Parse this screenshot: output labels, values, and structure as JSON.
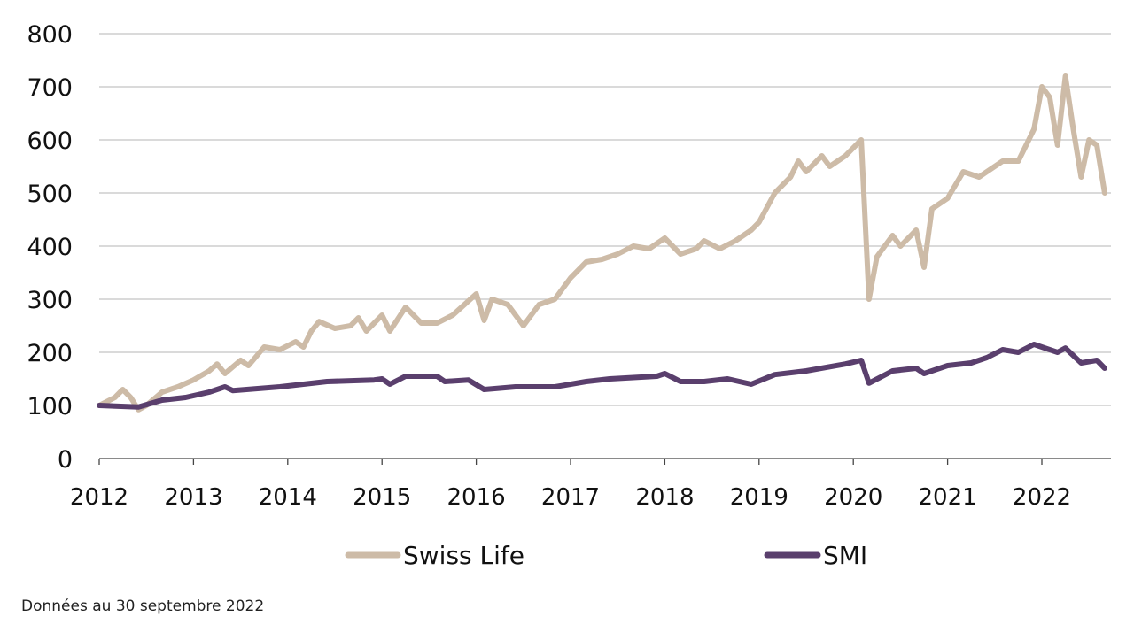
{
  "chart_data": {
    "type": "line",
    "title": "",
    "xlabel": "",
    "ylabel": "",
    "ylim": [
      0,
      800
    ],
    "yticks": [
      "0",
      "100",
      "200",
      "300",
      "400",
      "500",
      "600",
      "700",
      "800"
    ],
    "xticks": [
      "2012",
      "2013",
      "2014",
      "2015",
      "2016",
      "2017",
      "2018",
      "2019",
      "2020",
      "2021",
      "2022"
    ],
    "grid": true,
    "legend": "bottom",
    "series": [
      {
        "name": "Swiss Life",
        "color": "#cdbba7",
        "points": [
          [
            "2012-01",
            100
          ],
          [
            "2012-03",
            115
          ],
          [
            "2012-04",
            130
          ],
          [
            "2012-05",
            115
          ],
          [
            "2012-06",
            92
          ],
          [
            "2012-07",
            100
          ],
          [
            "2012-09",
            125
          ],
          [
            "2012-11",
            135
          ],
          [
            "2013-01",
            148
          ],
          [
            "2013-03",
            165
          ],
          [
            "2013-04",
            178
          ],
          [
            "2013-05",
            160
          ],
          [
            "2013-07",
            185
          ],
          [
            "2013-08",
            175
          ],
          [
            "2013-10",
            210
          ],
          [
            "2013-12",
            205
          ],
          [
            "2014-02",
            220
          ],
          [
            "2014-03",
            210
          ],
          [
            "2014-04",
            240
          ],
          [
            "2014-05",
            258
          ],
          [
            "2014-07",
            245
          ],
          [
            "2014-09",
            250
          ],
          [
            "2014-10",
            265
          ],
          [
            "2014-11",
            240
          ],
          [
            "2015-01",
            270
          ],
          [
            "2015-02",
            240
          ],
          [
            "2015-04",
            285
          ],
          [
            "2015-06",
            255
          ],
          [
            "2015-08",
            255
          ],
          [
            "2015-10",
            270
          ],
          [
            "2016-01",
            310
          ],
          [
            "2016-02",
            260
          ],
          [
            "2016-03",
            300
          ],
          [
            "2016-05",
            290
          ],
          [
            "2016-07",
            250
          ],
          [
            "2016-09",
            290
          ],
          [
            "2016-11",
            300
          ],
          [
            "2017-01",
            340
          ],
          [
            "2017-03",
            370
          ],
          [
            "2017-05",
            375
          ],
          [
            "2017-07",
            385
          ],
          [
            "2017-09",
            400
          ],
          [
            "2017-11",
            395
          ],
          [
            "2018-01",
            415
          ],
          [
            "2018-03",
            385
          ],
          [
            "2018-05",
            395
          ],
          [
            "2018-06",
            410
          ],
          [
            "2018-08",
            395
          ],
          [
            "2018-10",
            410
          ],
          [
            "2018-12",
            430
          ],
          [
            "2019-01",
            445
          ],
          [
            "2019-03",
            500
          ],
          [
            "2019-05",
            530
          ],
          [
            "2019-06",
            560
          ],
          [
            "2019-07",
            540
          ],
          [
            "2019-09",
            570
          ],
          [
            "2019-10",
            550
          ],
          [
            "2019-12",
            570
          ],
          [
            "2020-02",
            600
          ],
          [
            "2020-03",
            300
          ],
          [
            "2020-04",
            380
          ],
          [
            "2020-06",
            420
          ],
          [
            "2020-07",
            400
          ],
          [
            "2020-09",
            430
          ],
          [
            "2020-10",
            360
          ],
          [
            "2020-11",
            470
          ],
          [
            "2021-01",
            490
          ],
          [
            "2021-03",
            540
          ],
          [
            "2021-05",
            530
          ],
          [
            "2021-06",
            540
          ],
          [
            "2021-08",
            560
          ],
          [
            "2021-10",
            560
          ],
          [
            "2021-12",
            620
          ],
          [
            "2022-01",
            700
          ],
          [
            "2022-02",
            680
          ],
          [
            "2022-03",
            590
          ],
          [
            "2022-04",
            720
          ],
          [
            "2022-05",
            620
          ],
          [
            "2022-06",
            530
          ],
          [
            "2022-07",
            600
          ],
          [
            "2022-08",
            590
          ],
          [
            "2022-09",
            500
          ]
        ]
      },
      {
        "name": "SMI",
        "color": "#5a3f6d",
        "points": [
          [
            "2012-01",
            100
          ],
          [
            "2012-06",
            97
          ],
          [
            "2012-09",
            110
          ],
          [
            "2012-12",
            115
          ],
          [
            "2013-03",
            125
          ],
          [
            "2013-05",
            135
          ],
          [
            "2013-06",
            128
          ],
          [
            "2013-12",
            135
          ],
          [
            "2014-06",
            145
          ],
          [
            "2014-12",
            148
          ],
          [
            "2015-01",
            150
          ],
          [
            "2015-02",
            140
          ],
          [
            "2015-04",
            155
          ],
          [
            "2015-08",
            155
          ],
          [
            "2015-09",
            145
          ],
          [
            "2015-12",
            148
          ],
          [
            "2016-02",
            130
          ],
          [
            "2016-06",
            135
          ],
          [
            "2016-11",
            135
          ],
          [
            "2017-03",
            145
          ],
          [
            "2017-06",
            150
          ],
          [
            "2017-12",
            155
          ],
          [
            "2018-01",
            160
          ],
          [
            "2018-03",
            145
          ],
          [
            "2018-06",
            145
          ],
          [
            "2018-09",
            150
          ],
          [
            "2018-12",
            140
          ],
          [
            "2019-03",
            158
          ],
          [
            "2019-07",
            165
          ],
          [
            "2019-12",
            178
          ],
          [
            "2020-02",
            185
          ],
          [
            "2020-03",
            142
          ],
          [
            "2020-06",
            165
          ],
          [
            "2020-09",
            170
          ],
          [
            "2020-10",
            160
          ],
          [
            "2021-01",
            175
          ],
          [
            "2021-04",
            180
          ],
          [
            "2021-06",
            190
          ],
          [
            "2021-08",
            205
          ],
          [
            "2021-10",
            200
          ],
          [
            "2021-12",
            215
          ],
          [
            "2022-03",
            200
          ],
          [
            "2022-04",
            208
          ],
          [
            "2022-06",
            180
          ],
          [
            "2022-08",
            185
          ],
          [
            "2022-09",
            170
          ]
        ]
      }
    ]
  },
  "footnote": "Données au 30 septembre 2022"
}
